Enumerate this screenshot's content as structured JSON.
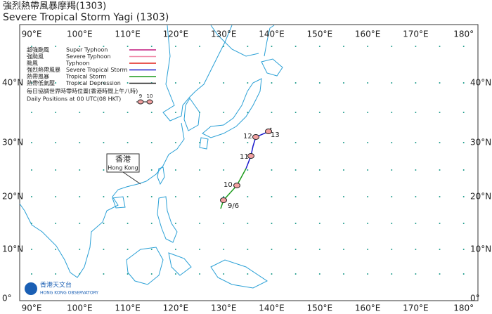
{
  "header": {
    "title_zh": "強烈熱帶風暴摩羯(1303)",
    "title_en": "Severe Tropical Storm Yagi (1303)"
  },
  "map": {
    "lon_labels": [
      "90°E",
      "100°E",
      "110°E",
      "120°E",
      "130°E",
      "140°E",
      "150°E",
      "160°E",
      "170°E",
      "180°"
    ],
    "lat_labels": [
      "40°N",
      "30°N",
      "20°N",
      "10°N",
      "0°"
    ]
  },
  "legend": {
    "entries": [
      {
        "zh": "超強颱風",
        "en": "Super Typhoon"
      },
      {
        "zh": "強颱風",
        "en": "Severe Typhoon"
      },
      {
        "zh": "颱風",
        "en": "Typhoon"
      },
      {
        "zh": "強烈熱帶風暴",
        "en": "Severe Tropical Storm"
      },
      {
        "zh": "熱帶風暴",
        "en": "Tropical Storm"
      },
      {
        "zh": "熱帶低氣壓",
        "en": "Tropical Depression"
      }
    ],
    "note_zh": "每日協調世界時零時位置(香港時間上午八時)",
    "note_en": "Daily Positions at 00 UTC(08 HKT)",
    "sample_labels": [
      "9",
      "10"
    ]
  },
  "place_label": {
    "zh": "香港",
    "en": "Hong Kong"
  },
  "track_labels": [
    "9/6",
    "10",
    "11",
    "12",
    "13"
  ],
  "logo": {
    "zh": "香港天文台",
    "en": "HONG KONG OBSERVATORY"
  }
}
